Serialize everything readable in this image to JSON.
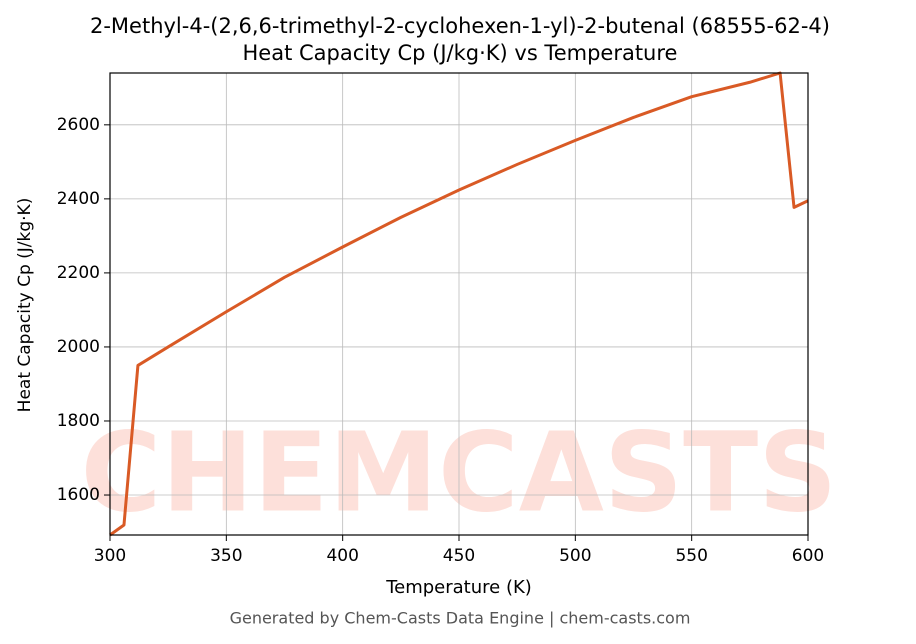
{
  "chart_data": {
    "type": "line",
    "title": "2-Methyl-4-(2,6,6-trimethyl-2-cyclohexen-1-yl)-2-butenal (68555-62-4)",
    "subtitle": "Heat Capacity Cp (J/kg·K) vs Temperature",
    "x_label": "Temperature (K)",
    "y_label": "Heat Capacity Cp (J/kg·K)",
    "footer": "Generated by Chem-Casts Data Engine | chem-casts.com",
    "watermark": "CHEMCASTS",
    "x": [
      300,
      306,
      312,
      325,
      350,
      375,
      400,
      425,
      450,
      475,
      500,
      525,
      550,
      575,
      588,
      594,
      600
    ],
    "series": [
      {
        "name": "Cp",
        "color": "#d95a25",
        "values": [
          1492,
          1519,
          1950,
          2000,
          2095,
          2188,
          2270,
          2350,
          2424,
          2493,
          2558,
          2620,
          2676,
          2715,
          2740,
          2377,
          2395
        ]
      }
    ],
    "xlim": [
      300,
      600
    ],
    "xticks": [
      300,
      350,
      400,
      450,
      500,
      550,
      600
    ],
    "ylim": [
      1492,
      2740
    ],
    "yticks": [
      1600,
      1800,
      2000,
      2200,
      2400,
      2600
    ],
    "grid": true
  }
}
